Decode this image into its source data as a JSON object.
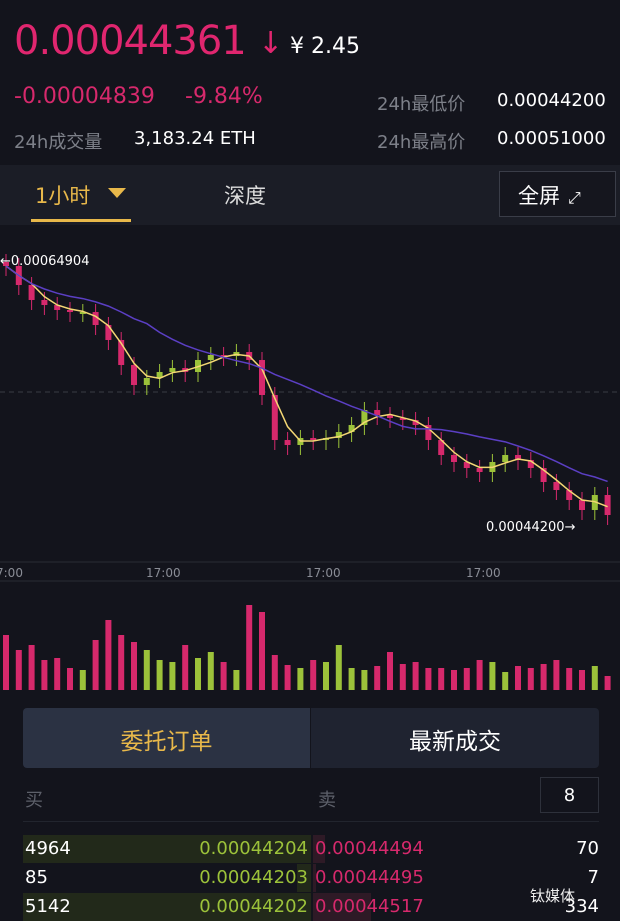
{
  "ticker": {
    "last_price": "0.00044361",
    "direction": "down",
    "direction_glyph": "↓",
    "cny_price": "¥ 2.45",
    "change": "-0.00004839",
    "change_pct": "-9.84%",
    "volume_label": "24h成交量",
    "volume_value": "3,183.24 ETH",
    "low_label": "24h最低价",
    "low_value": "0.00044200",
    "high_label": "24h最高价",
    "high_value": "0.00051000"
  },
  "colors": {
    "up": "#9cc23a",
    "down": "#d6296c",
    "accent": "#e8b84a",
    "ma_fast": "#f3d774",
    "ma_slow": "#5b3fc4"
  },
  "chart_tabs": {
    "interval": "1小时",
    "depth": "深度",
    "fullscreen": "全屏",
    "fullscreen_icon": "expand-arrows-icon"
  },
  "chart_data": {
    "type": "candlestick",
    "max_marker": "0.00064904",
    "min_marker": "0.00044200",
    "x_tick_labels": [
      "7:00",
      "17:00",
      "17:00",
      "17:00"
    ],
    "closes": [
      0.00064583,
      0.00063058,
      0.00061855,
      0.00061453,
      0.00061052,
      0.00060891,
      0.00060891,
      0.00059848,
      0.00058645,
      0.00056638,
      0.00055033,
      0.00055595,
      0.00056076,
      0.00056397,
      0.00056076,
      0.00057039,
      0.00057441,
      0.0005736,
      0.00057681,
      0.00057039,
      0.00054231,
      0.00050619,
      0.00050218,
      0.0005078,
      0.00050619,
      0.0005078,
      0.00051261,
      0.00051823,
      0.00053027,
      0.00052626,
      0.00052385,
      0.00052224,
      0.00051823,
      0.00050619,
      0.00049416,
      0.00048854,
      0.00048372,
      0.00048051,
      0.00048854,
      0.00049416,
      0.00049014,
      0.00048372,
      0.00047249,
      0.00046607,
      0.00045804,
      0.00045002,
      0.00046206,
      0.00044601
    ],
    "volumes": [
      55,
      40,
      45,
      30,
      32,
      22,
      20,
      50,
      70,
      55,
      48,
      40,
      30,
      28,
      45,
      32,
      38,
      28,
      20,
      85,
      78,
      35,
      25,
      22,
      30,
      28,
      45,
      22,
      20,
      24,
      38,
      26,
      28,
      22,
      22,
      20,
      22,
      30,
      28,
      18,
      24,
      22,
      26,
      30,
      22,
      20,
      24,
      14
    ]
  },
  "orders": {
    "tab_orders": "委托订单",
    "tab_trades": "最新成交",
    "buy_label": "买",
    "sell_label": "卖",
    "depth_value": "8",
    "rows": [
      {
        "bid_qty": "4964",
        "bid_price": "0.00044204",
        "ask_price": "0.00044494",
        "ask_qty": "70",
        "bid_depth": 1.0,
        "ask_depth": 0.04
      },
      {
        "bid_qty": "85",
        "bid_price": "0.00044203",
        "ask_price": "0.00044495",
        "ask_qty": "7",
        "bid_depth": 0.05,
        "ask_depth": 0.01
      },
      {
        "bid_qty": "5142",
        "bid_price": "0.00044202",
        "ask_price": "0.00044517",
        "ask_qty": "334",
        "bid_depth": 1.0,
        "ask_depth": 0.2
      }
    ]
  },
  "watermark": "钛媒体"
}
